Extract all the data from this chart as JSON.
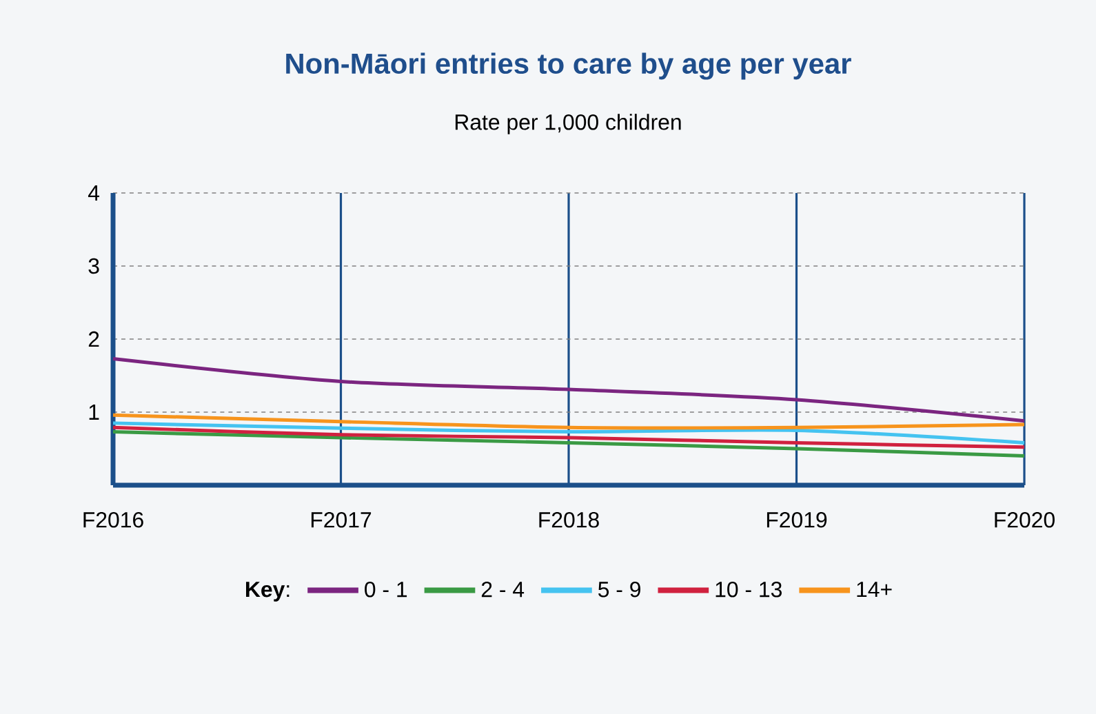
{
  "chart_data": {
    "type": "line",
    "title": "Non-Māori entries to care by age per year",
    "subtitle": "Rate per 1,000 children",
    "categories": [
      "F2016",
      "F2017",
      "F2018",
      "F2019",
      "F2020"
    ],
    "series": [
      {
        "name": "0 - 1",
        "color": "#7b2580",
        "values": [
          1.73,
          1.42,
          1.31,
          1.17,
          0.88
        ]
      },
      {
        "name": "2 - 4",
        "color": "#3a9a44",
        "values": [
          0.73,
          0.65,
          0.58,
          0.5,
          0.4
        ]
      },
      {
        "name": "5 - 9",
        "color": "#45c3f0",
        "values": [
          0.85,
          0.78,
          0.73,
          0.75,
          0.58
        ]
      },
      {
        "name": "10 - 13",
        "color": "#d0213f",
        "values": [
          0.79,
          0.69,
          0.65,
          0.58,
          0.52
        ]
      },
      {
        "name": "14+",
        "color": "#f7941d",
        "values": [
          0.96,
          0.87,
          0.79,
          0.79,
          0.83
        ]
      }
    ],
    "legend_title": "**Key**:",
    "legend": "bottom",
    "ylim": [
      0,
      4
    ],
    "yticks": [
      1,
      2,
      3,
      4
    ],
    "grid": true
  }
}
